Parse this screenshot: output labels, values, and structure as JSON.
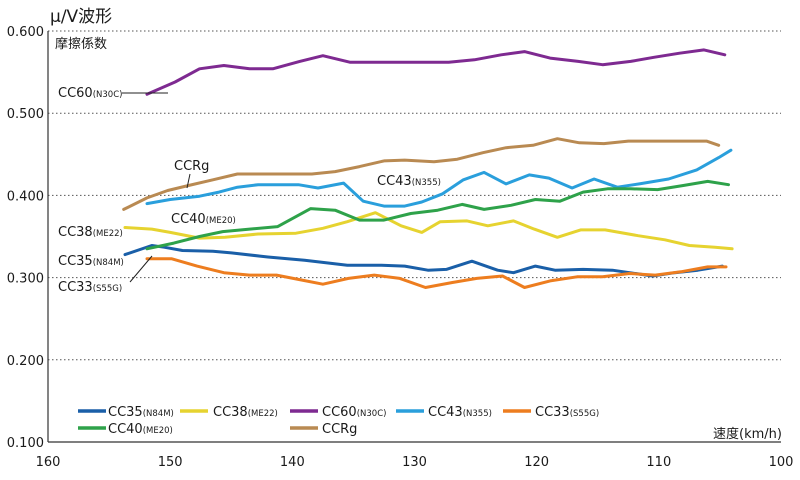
{
  "chart_data": {
    "type": "line",
    "title": "μ/V波形",
    "ylabel": "摩擦係数",
    "xlabel": "速度(km/h)",
    "xlim": [
      160,
      100
    ],
    "ylim": [
      0.1,
      0.6
    ],
    "x_ticks": [
      "160",
      "150",
      "140",
      "130",
      "120",
      "110",
      "100"
    ],
    "y_ticks": [
      "0.100",
      "0.200",
      "0.300",
      "0.400",
      "0.500",
      "0.600"
    ],
    "grid": "horizontal dotted",
    "legend_position": "bottom-left",
    "series": [
      {
        "name": "CC35",
        "code": "(N84M)",
        "color": "#1a5fa8",
        "label_main": "CC35",
        "label_code": "(N84M)",
        "x": [
          153.7,
          151.5,
          150.5,
          149,
          146.5,
          145,
          142,
          139,
          135.5,
          132.7,
          130.8,
          128.9,
          127.4,
          125.3,
          123.2,
          121.9,
          120.1,
          118.5,
          116.2,
          113.8,
          110.5,
          108.7,
          106.8,
          104.8
        ],
        "y": [
          0.328,
          0.339,
          0.337,
          0.333,
          0.332,
          0.33,
          0.325,
          0.321,
          0.315,
          0.315,
          0.314,
          0.309,
          0.31,
          0.32,
          0.309,
          0.306,
          0.314,
          0.309,
          0.31,
          0.309,
          0.302,
          0.306,
          0.309,
          0.314
        ]
      },
      {
        "name": "CC38",
        "code": "(ME22)",
        "color": "#e6d330",
        "label_main": "CC38",
        "label_code": "(ME22)",
        "x": [
          153.7,
          151.5,
          150,
          147.6,
          145.5,
          142.8,
          139.7,
          137.5,
          135.5,
          133.2,
          131.1,
          129.4,
          127.9,
          125.7,
          124,
          121.9,
          120.2,
          118.3,
          116.4,
          114.4,
          111.7,
          109.5,
          107.5,
          105.4,
          104
        ],
        "y": [
          0.361,
          0.359,
          0.355,
          0.348,
          0.349,
          0.353,
          0.354,
          0.36,
          0.368,
          0.379,
          0.363,
          0.355,
          0.368,
          0.369,
          0.363,
          0.369,
          0.359,
          0.349,
          0.358,
          0.358,
          0.351,
          0.346,
          0.339,
          0.337,
          0.335
        ]
      },
      {
        "name": "CC60",
        "code": "(N30C)",
        "color": "#7e2a91",
        "label_main": "CC60",
        "label_code": "(N30C)",
        "x": [
          151.9,
          149.6,
          147.6,
          145.6,
          143.5,
          141.6,
          139.4,
          137.5,
          135.3,
          133.2,
          131.1,
          129.1,
          127.2,
          125.1,
          122.9,
          121,
          118.9,
          116.6,
          114.6,
          112.3,
          110.4,
          108.3,
          106.3,
          104.6
        ],
        "y": [
          0.523,
          0.538,
          0.554,
          0.558,
          0.554,
          0.554,
          0.563,
          0.57,
          0.562,
          0.562,
          0.562,
          0.562,
          0.562,
          0.565,
          0.571,
          0.575,
          0.567,
          0.563,
          0.559,
          0.563,
          0.568,
          0.573,
          0.577,
          0.571
        ]
      },
      {
        "name": "CC43",
        "code": "(N355)",
        "color": "#2a9fdc",
        "label_main": "CC43",
        "label_code": "(N355)",
        "x": [
          151.9,
          150,
          147.6,
          146,
          144.5,
          142.8,
          139.5,
          137.9,
          135.8,
          134.2,
          132.5,
          130.8,
          129.4,
          127.7,
          126,
          124.3,
          122.5,
          120.6,
          119,
          117.1,
          115.3,
          113.4,
          111.6,
          109.2,
          106.9,
          105.1,
          104.1
        ],
        "y": [
          0.39,
          0.395,
          0.399,
          0.404,
          0.41,
          0.413,
          0.413,
          0.409,
          0.415,
          0.393,
          0.387,
          0.387,
          0.392,
          0.402,
          0.419,
          0.428,
          0.414,
          0.425,
          0.421,
          0.409,
          0.42,
          0.41,
          0.414,
          0.42,
          0.431,
          0.446,
          0.455
        ]
      },
      {
        "name": "CC33",
        "code": "(S55G)",
        "color": "#ed7d1f",
        "label_main": "CC33",
        "label_code": "(S55G)",
        "x": [
          151.9,
          149.9,
          147.8,
          145.6,
          143.5,
          141.3,
          139.2,
          137.5,
          135.4,
          133.3,
          131.2,
          129.1,
          126.9,
          124.9,
          122.8,
          121,
          118.9,
          116.7,
          114.6,
          112.4,
          110.3,
          108.2,
          106,
          104.5
        ],
        "y": [
          0.323,
          0.323,
          0.314,
          0.306,
          0.303,
          0.303,
          0.297,
          0.292,
          0.299,
          0.303,
          0.299,
          0.288,
          0.294,
          0.299,
          0.302,
          0.288,
          0.296,
          0.301,
          0.301,
          0.305,
          0.303,
          0.307,
          0.313,
          0.313
        ]
      },
      {
        "name": "CC40",
        "code": "(ME20)",
        "color": "#2ea24a",
        "label_main": "CC40",
        "label_code": "(ME20)",
        "x": [
          151.9,
          149.7,
          147.6,
          145.7,
          143.5,
          141.2,
          138.5,
          136.5,
          134.5,
          132.5,
          130.3,
          128.1,
          126.1,
          124.3,
          122.1,
          120.1,
          118.1,
          116.2,
          114.2,
          112.3,
          110.1,
          108,
          106,
          104.3
        ],
        "y": [
          0.335,
          0.342,
          0.35,
          0.356,
          0.359,
          0.362,
          0.384,
          0.382,
          0.37,
          0.37,
          0.378,
          0.382,
          0.389,
          0.383,
          0.388,
          0.395,
          0.393,
          0.404,
          0.408,
          0.408,
          0.407,
          0.412,
          0.417,
          0.413
        ]
      },
      {
        "name": "CCRg",
        "code": "",
        "color": "#b98a52",
        "label_main": "CCRg",
        "label_code": "",
        "x": [
          153.8,
          151.9,
          150.2,
          148.5,
          146.5,
          144.5,
          142.5,
          140.5,
          138.4,
          136.5,
          134.5,
          132.5,
          130.8,
          128.4,
          126.5,
          124.4,
          122.5,
          120.3,
          118.3,
          116.5,
          114.5,
          112.5,
          110.3,
          108,
          106.1,
          105.1
        ],
        "y": [
          0.383,
          0.397,
          0.406,
          0.412,
          0.419,
          0.426,
          0.426,
          0.426,
          0.426,
          0.429,
          0.435,
          0.442,
          0.443,
          0.441,
          0.444,
          0.452,
          0.458,
          0.461,
          0.469,
          0.464,
          0.463,
          0.466,
          0.466,
          0.466,
          0.466,
          0.461
        ]
      }
    ]
  }
}
